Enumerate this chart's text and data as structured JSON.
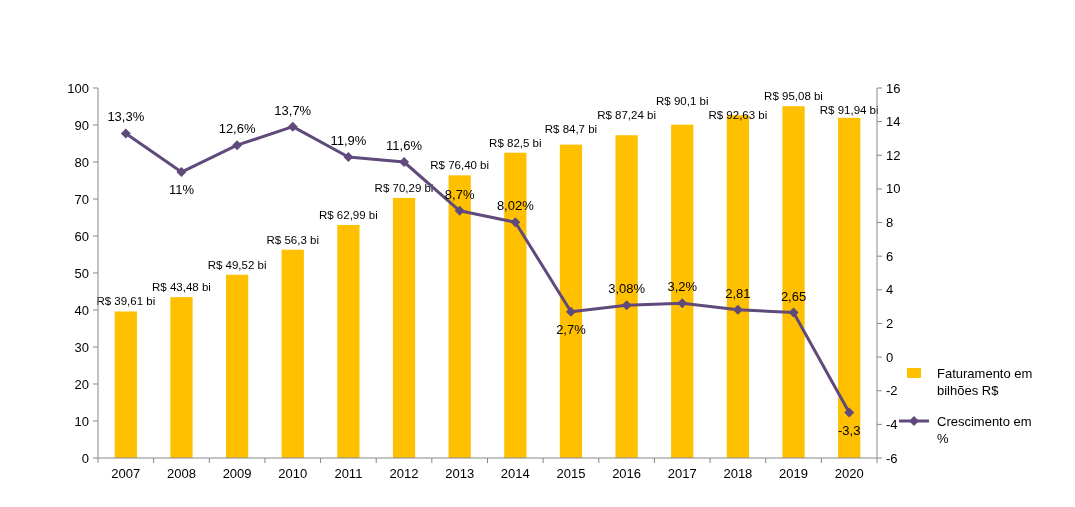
{
  "chart_data": {
    "type": "bar",
    "categories": [
      "2007",
      "2008",
      "2009",
      "2010",
      "2011",
      "2012",
      "2013",
      "2014",
      "2015",
      "2016",
      "2017",
      "2018",
      "2019",
      "2020"
    ],
    "ylim": [
      0,
      100
    ],
    "yticks": [
      0,
      10,
      20,
      30,
      40,
      50,
      60,
      70,
      80,
      90,
      100
    ],
    "y2lim": [
      -6,
      16
    ],
    "y2ticks": [
      -6,
      -4,
      -2,
      0,
      2,
      4,
      6,
      8,
      10,
      12,
      14,
      16
    ],
    "grid": false,
    "legend": "right",
    "marker": "diamond",
    "line_style": "solid",
    "series": [
      {
        "name": "Faturamento em bilhões R$",
        "color": "#ffc000",
        "values": [
          39.61,
          43.48,
          49.52,
          56.3,
          62.99,
          70.29,
          76.4,
          82.5,
          84.7,
          87.24,
          90.1,
          92.63,
          95.08,
          91.94
        ],
        "value_labels": [
          "R$ 39,61 bi",
          "R$ 43,48 bi",
          "R$ 49,52 bi",
          "R$ 56,3 bi",
          "R$ 62,99 bi",
          "R$ 70,29 bi",
          "R$ 76,40 bi",
          "R$ 82,5 bi",
          "R$ 84,7 bi",
          "R$ 87,24 bi",
          "R$ 90,1 bi",
          "R$ 92,63 bi",
          "R$ 95,08 bi",
          "R$ 91,94 bi"
        ]
      },
      {
        "name": "Crescimento em %",
        "type": "line",
        "axis": "y2",
        "color": "#604a7b",
        "values": [
          13.3,
          11,
          12.6,
          13.7,
          11.9,
          11.6,
          8.7,
          8.02,
          2.7,
          3.08,
          3.2,
          2.81,
          2.65,
          -3.3
        ],
        "value_labels": [
          "13,3%",
          "11%",
          "12,6%",
          "13,7%",
          "11,9%",
          "11,6%",
          "8,7%",
          "8,02%",
          "2,7%",
          "3,08%",
          "3,2%",
          "2,81",
          "2,65",
          "-3,3"
        ]
      }
    ]
  }
}
